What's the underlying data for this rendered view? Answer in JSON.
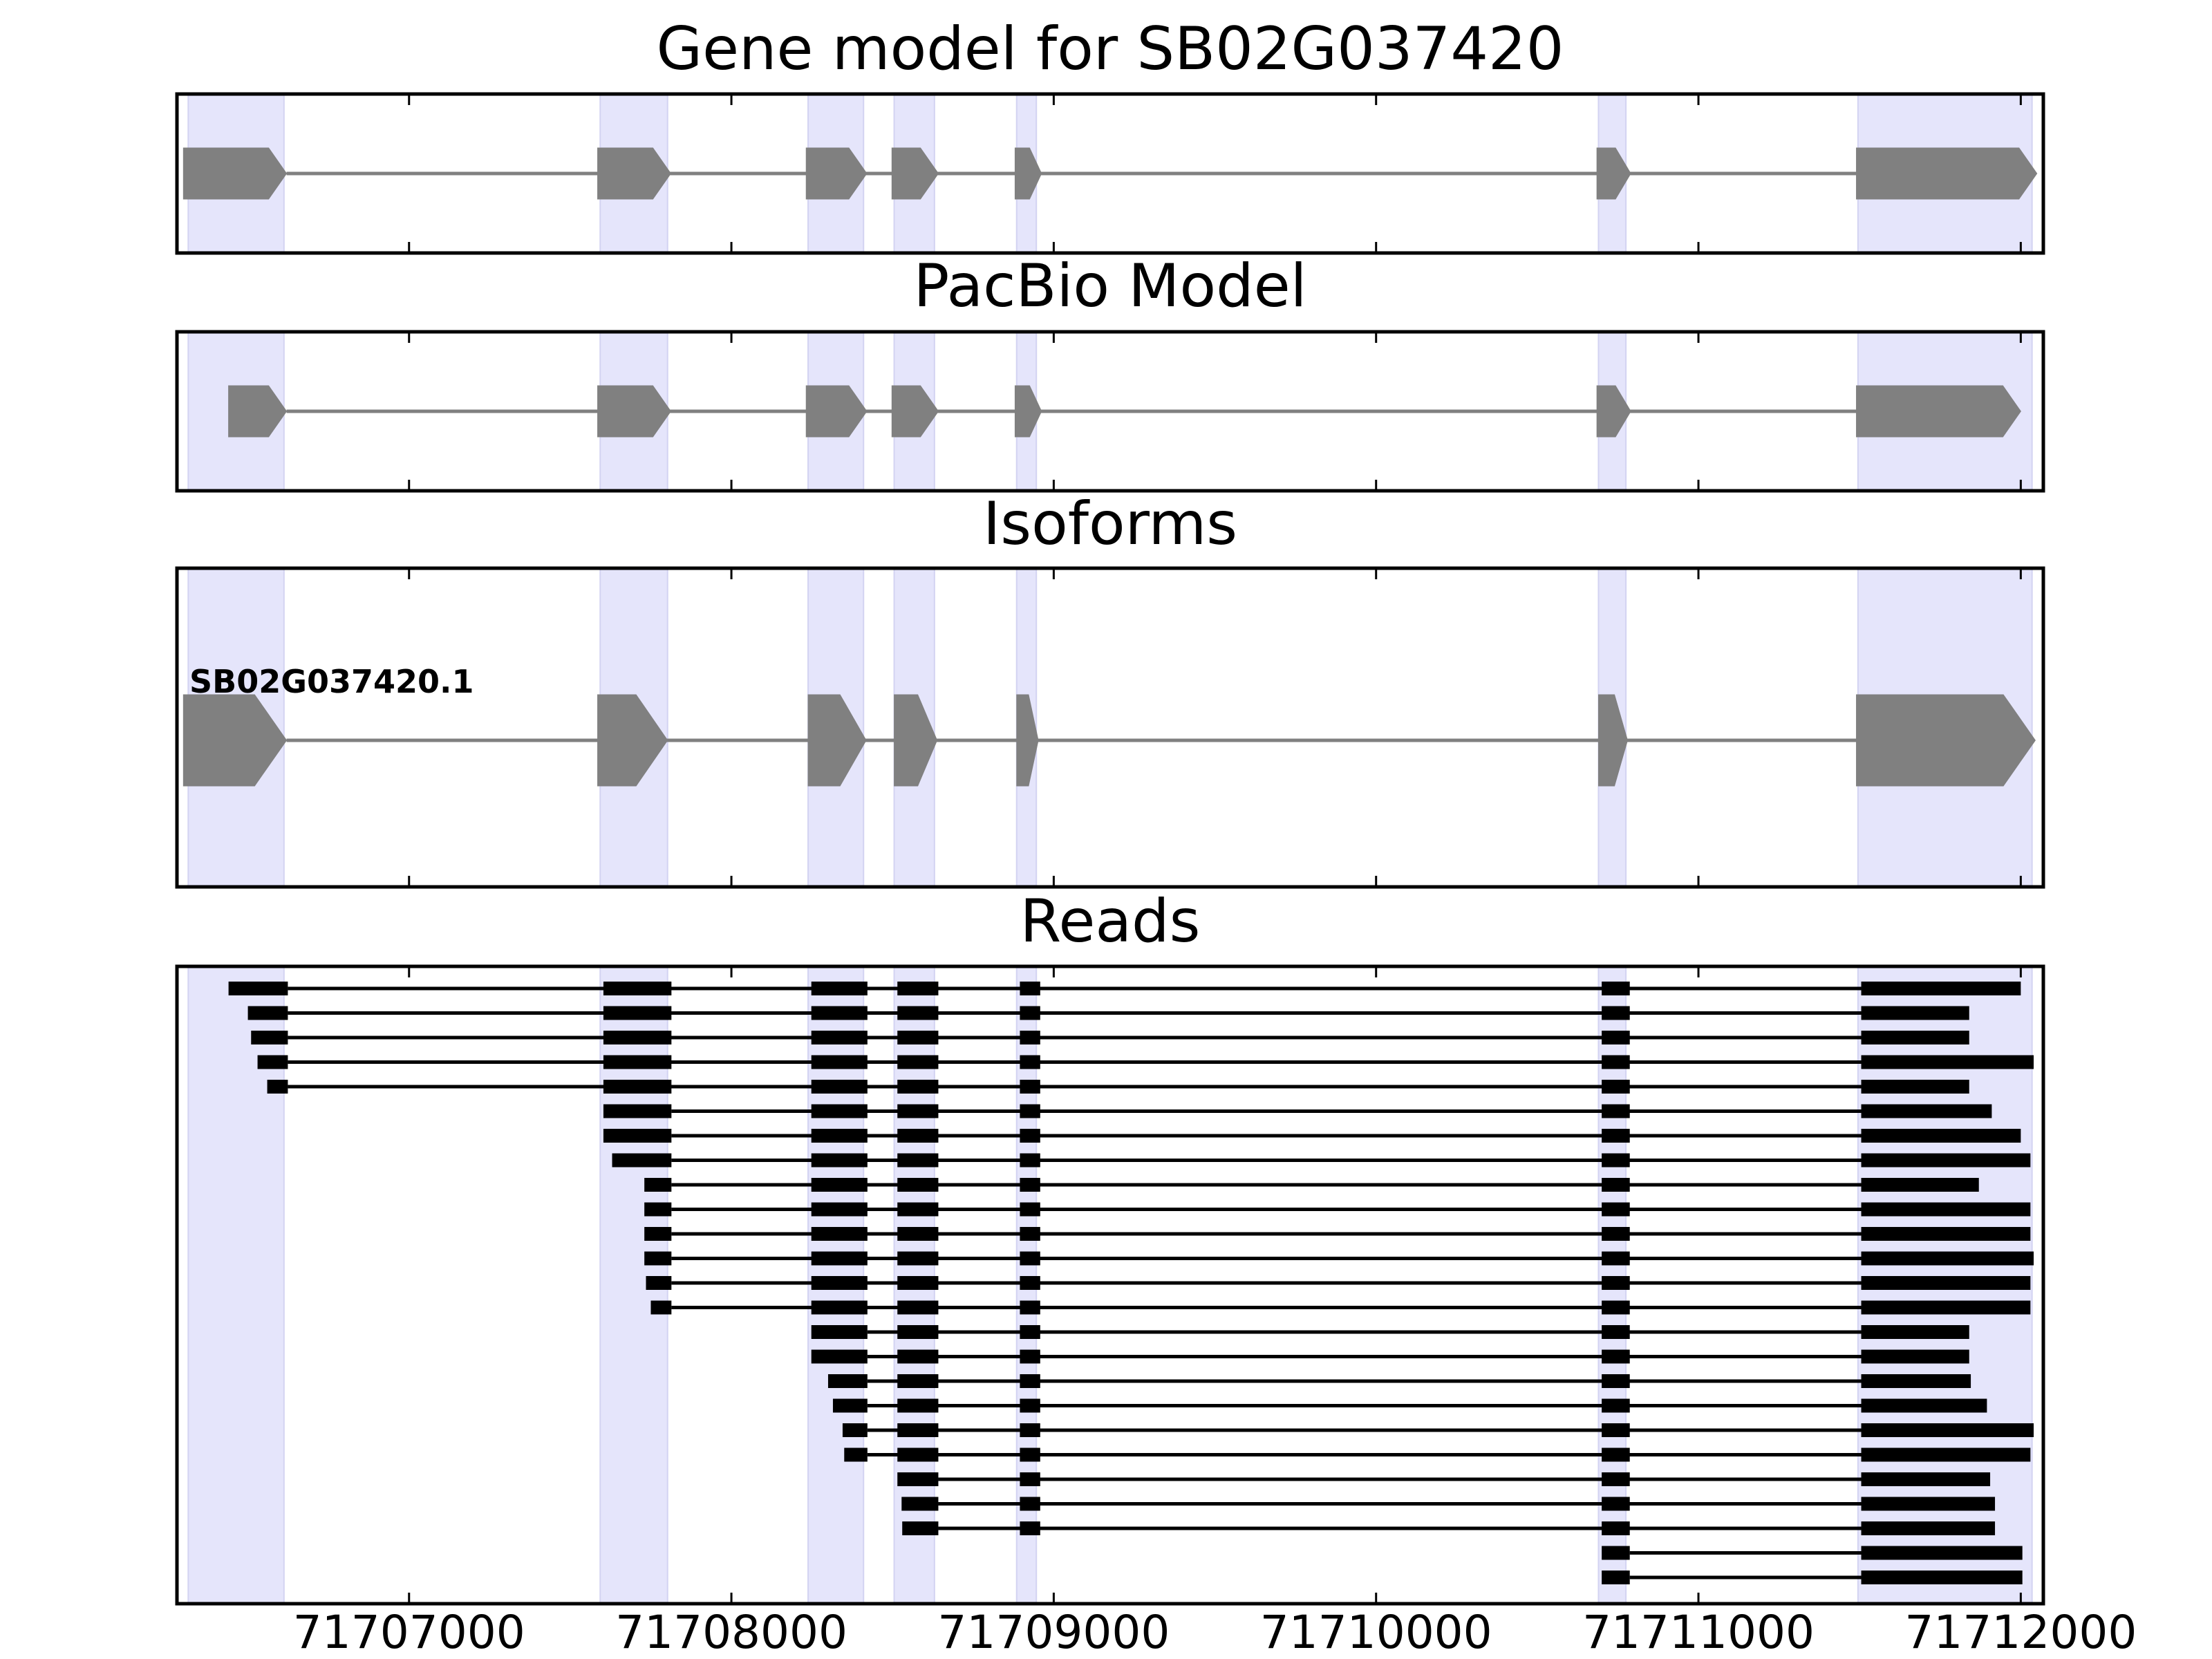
{
  "chart_data": {
    "type": "gene-model-tracks",
    "xlim": [
      71706280,
      71712070
    ],
    "x_ticks": [
      71707000,
      71708000,
      71709000,
      71710000,
      71711000,
      71712000
    ],
    "x_tick_labels": [
      "71707000",
      "71708000",
      "71709000",
      "71710000",
      "71711000",
      "71712000"
    ],
    "highlight_regions": [
      [
        71706315,
        71706612
      ],
      [
        71707593,
        71707802
      ],
      [
        71708238,
        71708410
      ],
      [
        71708505,
        71708630
      ],
      [
        71708885,
        71708946
      ],
      [
        71710690,
        71710775
      ],
      [
        71711495,
        71712035
      ]
    ],
    "panels": [
      {
        "title": "Gene model for SB02G037420",
        "strand": "+",
        "isoforms": [
          {
            "label": "",
            "exons": [
              [
                71706300,
                71706620
              ],
              [
                71707585,
                71707812
              ],
              [
                71708232,
                71708420
              ],
              [
                71708498,
                71708642
              ],
              [
                71708880,
                71708962
              ],
              [
                71710685,
                71710790
              ],
              [
                71711490,
                71712050
              ]
            ]
          }
        ]
      },
      {
        "title": "PacBio Model",
        "strand": "+",
        "isoforms": [
          {
            "label": "",
            "exons": [
              [
                71706440,
                71706620
              ],
              [
                71707585,
                71707812
              ],
              [
                71708232,
                71708420
              ],
              [
                71708498,
                71708642
              ],
              [
                71708880,
                71708962
              ],
              [
                71710685,
                71710790
              ],
              [
                71711490,
                71712000
              ]
            ]
          }
        ]
      },
      {
        "title": "Isoforms",
        "strand": "+",
        "isoforms": [
          {
            "label": "SB02G037420.1",
            "exons": [
              [
                71706300,
                71706620
              ],
              [
                71707585,
                71707802
              ],
              [
                71708238,
                71708418
              ],
              [
                71708505,
                71708638
              ],
              [
                71708885,
                71708952
              ],
              [
                71710690,
                71710780
              ],
              [
                71711490,
                71712045
              ]
            ]
          }
        ]
      },
      {
        "title": "Reads",
        "reads": [
          {
            "start": 71706440,
            "end": 71712000
          },
          {
            "start": 71706500,
            "end": 71711840
          },
          {
            "start": 71706510,
            "end": 71711840
          },
          {
            "start": 71706530,
            "end": 71712040
          },
          {
            "start": 71706560,
            "end": 71711840
          },
          {
            "start": 71707590,
            "end": 71711910
          },
          {
            "start": 71707590,
            "end": 71712000
          },
          {
            "start": 71707630,
            "end": 71712030
          },
          {
            "start": 71707730,
            "end": 71711870
          },
          {
            "start": 71707730,
            "end": 71712030
          },
          {
            "start": 71707730,
            "end": 71712030
          },
          {
            "start": 71707730,
            "end": 71712040
          },
          {
            "start": 71707735,
            "end": 71712030
          },
          {
            "start": 71707750,
            "end": 71712030
          },
          {
            "start": 71708235,
            "end": 71711840
          },
          {
            "start": 71708248,
            "end": 71711840
          },
          {
            "start": 71708300,
            "end": 71711845
          },
          {
            "start": 71708315,
            "end": 71711895
          },
          {
            "start": 71708345,
            "end": 71712040
          },
          {
            "start": 71708350,
            "end": 71712030
          },
          {
            "start": 71708505,
            "end": 71711905
          },
          {
            "start": 71708528,
            "end": 71711920
          },
          {
            "start": 71708530,
            "end": 71711920
          },
          {
            "start": 71710690,
            "end": 71712005
          },
          {
            "start": 71710690,
            "end": 71712005
          }
        ]
      }
    ]
  }
}
